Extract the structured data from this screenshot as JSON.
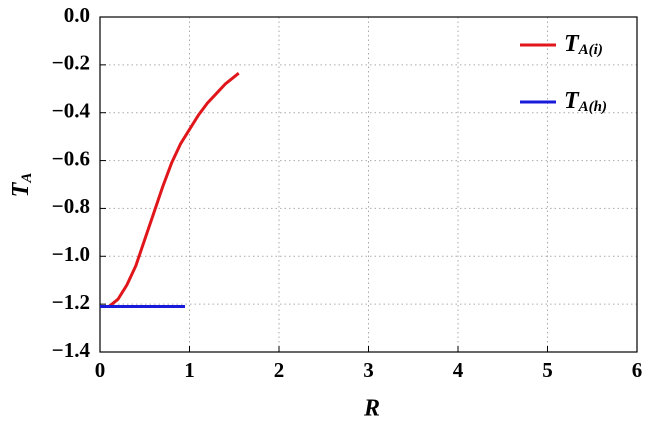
{
  "chart_data": {
    "type": "line",
    "x_label": "R",
    "y_label": "TA",
    "xlim": [
      0,
      6
    ],
    "xticks": [
      0,
      1,
      2,
      3,
      4,
      5,
      6
    ],
    "ylim": [
      -1.4,
      0
    ],
    "yticks": [
      {
        "value": -1.4,
        "label": "−1.4"
      },
      {
        "value": -1.2,
        "label": "−1.2"
      },
      {
        "value": -1.0,
        "label": "−1.0"
      },
      {
        "value": -0.8,
        "label": "−0.8"
      },
      {
        "value": -0.6,
        "label": "−0.6"
      },
      {
        "value": -0.4,
        "label": "−0.4"
      },
      {
        "value": -0.2,
        "label": "−0.2"
      },
      {
        "value": 0,
        "label": "0.0"
      }
    ],
    "grid": true,
    "legend": "top-right",
    "series": [
      {
        "name": "TA(i)",
        "color": "#e0161b",
        "x": [
          0.05,
          0.1,
          0.2,
          0.3,
          0.4,
          0.5,
          0.6,
          0.7,
          0.8,
          0.9,
          1.0,
          1.1,
          1.2,
          1.3,
          1.4,
          1.5,
          1.55
        ],
        "values": [
          -1.21,
          -1.21,
          -1.18,
          -1.12,
          -1.04,
          -0.93,
          -0.82,
          -0.71,
          -0.61,
          -0.53,
          -0.47,
          -0.41,
          -0.36,
          -0.32,
          -0.28,
          -0.25,
          -0.235
        ]
      },
      {
        "name": "TA(h)",
        "color": "#1a1adb",
        "x": [
          0,
          0.95
        ],
        "values": [
          -1.21,
          -1.21
        ]
      }
    ]
  }
}
